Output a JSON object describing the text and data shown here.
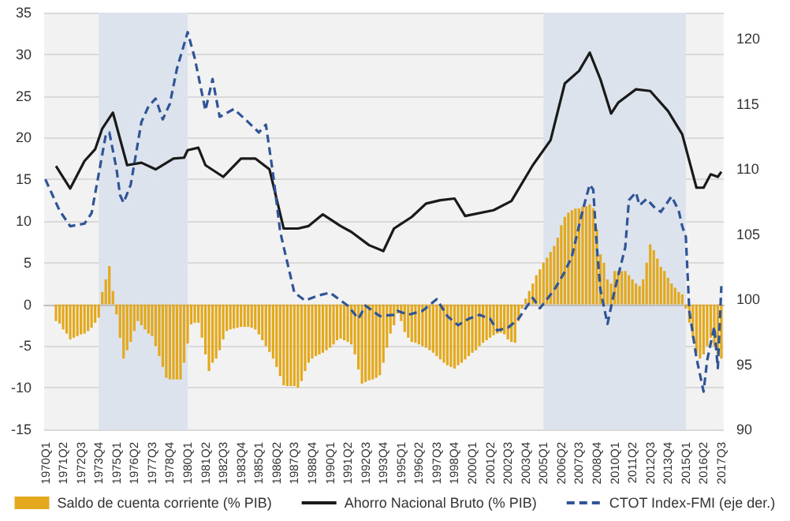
{
  "chart_data": {
    "type": "bar",
    "x": [
      "1970-10",
      "1971-01",
      "1971-04",
      "1971-07",
      "1971-10",
      "1972-01",
      "1972-04",
      "1972-07",
      "1972-10",
      "1973-01",
      "1973-04",
      "1973-07",
      "1973-10",
      "1974-01",
      "1974-04",
      "1974-07",
      "1974-10",
      "1975-01",
      "1975-04",
      "1975-07",
      "1975-10",
      "1976-01",
      "1976-04",
      "1976-07",
      "1976-10",
      "1977-01",
      "1977-04",
      "1977-07",
      "1977-10",
      "1978-01",
      "1978-04",
      "1978-07",
      "1978-10",
      "1979-01",
      "1979-04",
      "1979-07",
      "1979-10",
      "1980-01",
      "1980-04",
      "1980-07",
      "1980-10",
      "1981-01",
      "1981-04",
      "1981-07",
      "1981-10",
      "1982-01",
      "1982-04",
      "1982-07",
      "1982-10",
      "1983-01",
      "1983-04",
      "1983-07",
      "1983-10",
      "1984-01",
      "1984-04",
      "1984-07",
      "1984-10",
      "1985-01",
      "1985-04",
      "1985-07",
      "1985-10",
      "1986-01",
      "1986-04",
      "1986-07",
      "1986-10",
      "1987-01",
      "1987-04",
      "1987-07",
      "1987-10",
      "1988-01",
      "1988-04",
      "1988-07",
      "1988-10",
      "1989-01",
      "1989-04",
      "1989-07",
      "1989-10",
      "1990-01",
      "1990-04",
      "1990-07",
      "1990-10",
      "1991-01",
      "1991-04",
      "1991-07",
      "1991-10",
      "1992-01",
      "1992-04",
      "1992-07",
      "1992-10",
      "1993-01",
      "1993-04",
      "1993-07",
      "1993-10",
      "1994-01",
      "1994-04",
      "1994-07",
      "1994-10",
      "1995-01",
      "1995-04",
      "1995-07",
      "1995-10",
      "1996-01",
      "1996-04",
      "1996-07",
      "1996-10",
      "1997-01",
      "1997-04",
      "1997-07",
      "1997-10",
      "1998-01",
      "1998-04",
      "1998-07",
      "1998-10",
      "1999-01",
      "1999-04",
      "1999-07",
      "1999-10",
      "2000-01",
      "2000-04",
      "2000-07",
      "2000-10",
      "2001-01",
      "2001-04",
      "2001-07",
      "2001-10",
      "2002-01",
      "2002-04",
      "2002-07",
      "2002-10",
      "2003-01",
      "2003-04",
      "2003-07",
      "2003-10",
      "2004-01",
      "2004-04",
      "2004-07",
      "2004-10",
      "2005-01",
      "2005-04",
      "2005-07",
      "2005-10",
      "2006-01",
      "2006-04",
      "2006-07",
      "2006-10",
      "2007-01",
      "2007-04",
      "2007-07",
      "2007-10",
      "2008-01",
      "2008-04",
      "2008-07",
      "2008-10",
      "2009-01",
      "2009-04",
      "2009-07",
      "2009-10",
      "2010-01",
      "2010-04",
      "2010-07",
      "2010-10",
      "2011-01",
      "2011-04",
      "2011-07",
      "2011-10",
      "2012-01",
      "2012-04",
      "2012-07",
      "2012-10",
      "2013-01",
      "2013-04",
      "2013-07",
      "2013-10",
      "2014-01",
      "2014-04",
      "2014-07",
      "2014-10",
      "2015-01",
      "2015-04",
      "2015-07",
      "2015-10",
      "2016-01",
      "2016-04",
      "2016-07",
      "2016-10",
      "2017-01",
      "2017-04",
      "2017-07"
    ],
    "series": [
      {
        "name": "Saldo de cuenta corriente (% PIB)",
        "color": "#e3a81b",
        "values": [
          -2,
          -2.3,
          -3,
          -3.5,
          -4.2,
          -4,
          -3.8,
          -3.6,
          -3.5,
          -3.2,
          -2.8,
          -2.2,
          -1.6,
          1.5,
          3,
          4.6,
          1.6,
          -1.2,
          -4,
          -6.5,
          -5.5,
          -4.5,
          -3.2,
          -2,
          -2.5,
          -3,
          -3.5,
          -3.8,
          -5,
          -6.2,
          -7.5,
          -8.8,
          -9,
          -9,
          -9,
          -9,
          -7,
          -4.7,
          -2.4,
          -2.2,
          -2.2,
          -4,
          -6,
          -8,
          -7,
          -6.5,
          -5.5,
          -4.2,
          -3.2,
          -3,
          -2.9,
          -2.8,
          -2.7,
          -2.7,
          -2.7,
          -2.8,
          -3,
          -3.6,
          -4.3,
          -5,
          -5.7,
          -6.5,
          -7.5,
          -8.6,
          -9.7,
          -9.8,
          -9.8,
          -9.8,
          -10,
          -9.2,
          -8,
          -7,
          -6.5,
          -6.2,
          -6,
          -5.8,
          -5.5,
          -5.2,
          -4.8,
          -4.3,
          -4.1,
          -4.3,
          -4.5,
          -4.8,
          -6,
          -7.8,
          -9.5,
          -9.3,
          -9.1,
          -9,
          -8.8,
          -8.5,
          -7,
          -5.2,
          -3.5,
          -2.5,
          -1.1,
          -2,
          -3.3,
          -4,
          -4.5,
          -4.6,
          -4.8,
          -5,
          -5.2,
          -5.5,
          -5.8,
          -6.2,
          -6.6,
          -7,
          -7.3,
          -7.5,
          -7.7,
          -7.3,
          -7,
          -6.6,
          -6.2,
          -5.8,
          -5.5,
          -5,
          -4.6,
          -4.3,
          -4,
          -3.7,
          -3.5,
          -3.4,
          -3.6,
          -4.2,
          -4.5,
          -4.6,
          -2,
          -0.5,
          0.7,
          1.6,
          2.5,
          3.5,
          4.2,
          5,
          5.6,
          6.3,
          7,
          8,
          9.5,
          10.5,
          11,
          11.3,
          11.5,
          11.5,
          11.7,
          11.8,
          12,
          11.5,
          9,
          6,
          5,
          3,
          2.5,
          4,
          4,
          4,
          4,
          3.5,
          3,
          2.5,
          2.2,
          3,
          5,
          7.2,
          6.5,
          5.5,
          4.5,
          4,
          3.2,
          2.5,
          2,
          1.5,
          1.2,
          -0.5,
          -2.2,
          -4,
          -5.8,
          -6.5,
          -6,
          -5,
          -4,
          -5,
          -6,
          -6.5
        ]
      },
      {
        "name": "Ahorro Nacional Bruto (% PIB)",
        "type": "line",
        "color": "#1a1a1a",
        "line_style": "solid",
        "x": [
          "1970-10",
          "1971-10",
          "1972-10",
          "1973-07",
          "1974-01",
          "1974-10",
          "1975-10",
          "1976-10",
          "1977-10",
          "1979-01",
          "1979-10",
          "1980-01",
          "1980-10",
          "1981-04",
          "1982-07",
          "1983-10",
          "1984-10",
          "1985-10",
          "1986-10",
          "1987-10",
          "1988-07",
          "1989-07",
          "1990-10",
          "1991-07",
          "1992-10",
          "1993-10",
          "1994-07",
          "1995-10",
          "1996-10",
          "1997-10",
          "1998-10",
          "1999-07",
          "2001-07",
          "2002-10",
          "2004-04",
          "2005-07",
          "2006-07",
          "2007-07",
          "2008-04",
          "2009-01",
          "2009-10",
          "2010-04",
          "2011-07",
          "2012-07",
          "2013-10",
          "2014-10",
          "2015-10",
          "2016-04",
          "2016-10",
          "2017-04",
          "2017-07"
        ],
        "values": [
          16.6,
          13.9,
          17.2,
          18.6,
          21.1,
          23,
          16.7,
          17,
          16.2,
          17.5,
          17.6,
          18.5,
          18.8,
          16.7,
          15.3,
          17.5,
          17.5,
          16.2,
          9.1,
          9.1,
          9.4,
          10.8,
          9.4,
          8.7,
          7.1,
          6.4,
          9.1,
          10.5,
          12.1,
          12.5,
          12.7,
          10.6,
          11.3,
          12.4,
          16.7,
          19.7,
          26.5,
          28,
          30.2,
          27,
          22.9,
          24.2,
          25.8,
          25.6,
          23.2,
          20.4,
          14,
          14,
          15.6,
          15.3,
          15.9
        ]
      },
      {
        "name": "CTOT Index-FMI (eje der.)",
        "type": "line",
        "axis": "y2",
        "color": "#2f5597",
        "line_style": "dashed",
        "x": [
          "1970-01",
          "1971-01",
          "1971-10",
          "1972-10",
          "1973-04",
          "1973-10",
          "1974-04",
          "1974-07",
          "1975-01",
          "1975-04",
          "1975-07",
          "1976-01",
          "1976-10",
          "1977-04",
          "1977-10",
          "1978-04",
          "1978-10",
          "1979-04",
          "1980-01",
          "1980-07",
          "1981-04",
          "1981-10",
          "1982-04",
          "1983-04",
          "1984-04",
          "1985-01",
          "1985-07",
          "1986-01",
          "1986-07",
          "1986-10",
          "1987-07",
          "1988-04",
          "1989-04",
          "1990-01",
          "1990-10",
          "1991-04",
          "1992-01",
          "1992-07",
          "1993-01",
          "1993-07",
          "1994-07",
          "1994-10",
          "1995-07",
          "1996-07",
          "1997-07",
          "1998-04",
          "1999-01",
          "1999-10",
          "2000-07",
          "2001-04",
          "2001-10",
          "2002-07",
          "2003-04",
          "2004-04",
          "2004-10",
          "2005-10",
          "2006-07",
          "2007-01",
          "2007-10",
          "2008-04",
          "2008-07",
          "2008-10",
          "2009-01",
          "2009-07",
          "2010-01",
          "2010-10",
          "2011-01",
          "2011-07",
          "2011-10",
          "2012-04",
          "2012-10",
          "2013-04",
          "2014-01",
          "2014-07",
          "2014-10",
          "2015-01",
          "2015-04",
          "2015-10",
          "2016-04",
          "2016-07",
          "2017-01",
          "2017-04",
          "2017-07"
        ],
        "values": [
          109.2,
          106.8,
          105.6,
          105.8,
          106.6,
          109.6,
          112.6,
          112.8,
          110,
          108,
          107.4,
          108.8,
          113.6,
          114.8,
          115.4,
          113.8,
          115,
          117.7,
          120.5,
          118.5,
          114.5,
          116.9,
          114,
          114.6,
          113.6,
          112.8,
          113.4,
          109.6,
          105.2,
          104,
          100.5,
          99.9,
          100.3,
          100.5,
          99.9,
          99.5,
          98.5,
          99.5,
          99.1,
          98.7,
          98.8,
          99.1,
          98.8,
          99.1,
          100,
          98.7,
          98,
          98.5,
          98.8,
          98.5,
          97.6,
          97.8,
          98.5,
          100.1,
          99.3,
          100.7,
          102.1,
          103.3,
          106.8,
          108.8,
          108.4,
          104,
          100.7,
          98.1,
          100.7,
          104,
          107.6,
          108.2,
          107.2,
          107.7,
          107.1,
          106.7,
          107.9,
          106.8,
          105.6,
          104.8,
          99.1,
          95.5,
          92.9,
          95.3,
          97.9,
          94.7,
          101
        ]
      }
    ],
    "xlim": [
      "1969-12",
      "2017-09"
    ],
    "xticks": [
      {
        "value": "1970-01",
        "label": "1970Q1"
      },
      {
        "value": "1971-04",
        "label": "1971Q2"
      },
      {
        "value": "1972-07",
        "label": "1972Q3"
      },
      {
        "value": "1973-10",
        "label": "1973Q4"
      },
      {
        "value": "1975-01",
        "label": "1975Q1"
      },
      {
        "value": "1976-04",
        "label": "1976Q2"
      },
      {
        "value": "1977-07",
        "label": "1977Q3"
      },
      {
        "value": "1978-10",
        "label": "1978Q4"
      },
      {
        "value": "1980-01",
        "label": "1980Q1"
      },
      {
        "value": "1981-04",
        "label": "1981Q2"
      },
      {
        "value": "1982-07",
        "label": "1982Q3"
      },
      {
        "value": "1983-10",
        "label": "1983Q4"
      },
      {
        "value": "1985-01",
        "label": "1985Q1"
      },
      {
        "value": "1986-04",
        "label": "1986Q2"
      },
      {
        "value": "1987-07",
        "label": "1987Q3"
      },
      {
        "value": "1988-10",
        "label": "1988Q4"
      },
      {
        "value": "1990-01",
        "label": "1990Q1"
      },
      {
        "value": "1991-04",
        "label": "1991Q2"
      },
      {
        "value": "1992-07",
        "label": "1992Q3"
      },
      {
        "value": "1993-10",
        "label": "1993Q4"
      },
      {
        "value": "1995-01",
        "label": "1995Q1"
      },
      {
        "value": "1996-04",
        "label": "1996Q2"
      },
      {
        "value": "1997-07",
        "label": "1997Q3"
      },
      {
        "value": "1998-10",
        "label": "1998Q4"
      },
      {
        "value": "2000-01",
        "label": "2000Q1"
      },
      {
        "value": "2001-04",
        "label": "2001Q2"
      },
      {
        "value": "2002-07",
        "label": "2002Q3"
      },
      {
        "value": "2003-10",
        "label": "2003Q4"
      },
      {
        "value": "2005-01",
        "label": "2005Q1"
      },
      {
        "value": "2006-04",
        "label": "2006Q2"
      },
      {
        "value": "2007-07",
        "label": "2007Q3"
      },
      {
        "value": "2008-10",
        "label": "2008Q4"
      },
      {
        "value": "2010-01",
        "label": "2010Q1"
      },
      {
        "value": "2011-04",
        "label": "2011Q2"
      },
      {
        "value": "2012-07",
        "label": "2012Q3"
      },
      {
        "value": "2013-10",
        "label": "2013Q4"
      },
      {
        "value": "2015-01",
        "label": "2015Q1"
      },
      {
        "value": "2016-04",
        "label": "2016Q2"
      },
      {
        "value": "2017-07",
        "label": "2017Q3"
      }
    ],
    "ylim": [
      -15,
      35
    ],
    "yticks": [
      -15,
      -10,
      -5,
      0,
      5,
      10,
      15,
      20,
      25,
      30,
      35
    ],
    "y2lim": [
      90,
      122
    ],
    "y2ticks": [
      90,
      95,
      100,
      105,
      110,
      115,
      120
    ],
    "bands": [
      {
        "axis": "x",
        "from": "1973-10",
        "to": "1980-01",
        "color": "#dde3ec"
      },
      {
        "axis": "x",
        "from": "2005-01",
        "to": "2015-01",
        "color": "#dde3ec"
      }
    ],
    "grid": "y",
    "legend": "bottom"
  }
}
